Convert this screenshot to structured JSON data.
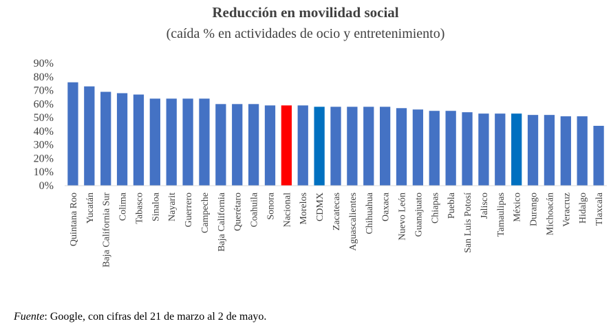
{
  "chart_data": {
    "type": "bar",
    "title": "Reducción en movilidad social",
    "subtitle": "(caída % en actividades de ocio y entretenimiento)",
    "categories": [
      "Quintana Roo",
      "Yucatán",
      "Baja California Sur",
      "Colima",
      "Tabasco",
      "Sinaloa",
      "Nayarit",
      "Guerrero",
      "Campeche",
      "Baja California",
      "Querétaro",
      "Coahuila",
      "Sonora",
      "Nacional",
      "Morelos",
      "CDMX",
      "Zacatecas",
      "Aguascalientes",
      "Chihuahua",
      "Oaxaca",
      "Nuevo León",
      "Guanajuato",
      "Chiapas",
      "Puebla",
      "San Luis Potosí",
      "Jalisco",
      "Tamaulipas",
      "México",
      "Durango",
      "Michoacán",
      "Veracruz",
      "Hidalgo",
      "Tlaxcala"
    ],
    "values": [
      76,
      73,
      69,
      68,
      67,
      64,
      64,
      64,
      64,
      60,
      60,
      60,
      59,
      59,
      59,
      58,
      58,
      58,
      58,
      58,
      57,
      56,
      55,
      55,
      54,
      53,
      53,
      53,
      52,
      52,
      51,
      51,
      44
    ],
    "highlight": {
      "Nacional": "#ff0000",
      "CDMX": "#0070c0",
      "México": "#0070c0"
    },
    "bar_color": "#4472c4",
    "yticks": [
      "0%",
      "10%",
      "20%",
      "30%",
      "40%",
      "50%",
      "60%",
      "70%",
      "80%",
      "90%"
    ],
    "ylim": [
      0,
      90
    ],
    "xlabel": "",
    "ylabel": "",
    "grid": false
  },
  "footer": {
    "source_label": "Fuente",
    "source_text": ": Google, con cifras del 21 de marzo al 2 de mayo."
  }
}
